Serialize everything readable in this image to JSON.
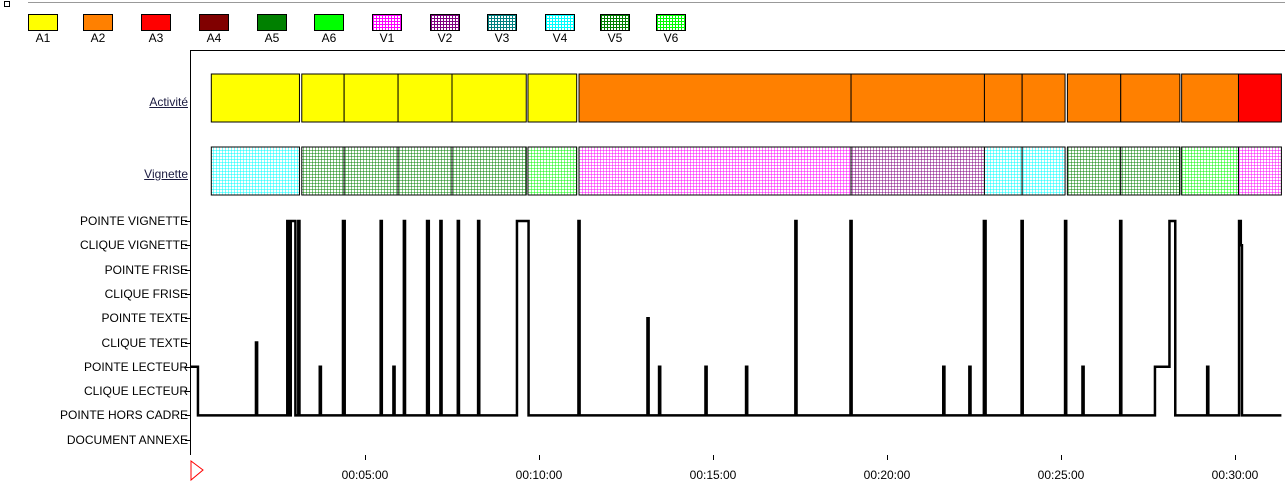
{
  "legend": [
    {
      "label": "A1",
      "color": "#ffff00",
      "pattern": "solid"
    },
    {
      "label": "A2",
      "color": "#ff8000",
      "pattern": "solid"
    },
    {
      "label": "A3",
      "color": "#ff0000",
      "pattern": "solid"
    },
    {
      "label": "A4",
      "color": "#800000",
      "pattern": "solid"
    },
    {
      "label": "A5",
      "color": "#008000",
      "pattern": "solid"
    },
    {
      "label": "A6",
      "color": "#00ff00",
      "pattern": "solid"
    },
    {
      "label": "V1",
      "color": "#ff00ff",
      "pattern": "grid"
    },
    {
      "label": "V2",
      "color": "#800080",
      "pattern": "grid"
    },
    {
      "label": "V3",
      "color": "#008080",
      "pattern": "grid"
    },
    {
      "label": "V4",
      "color": "#00ffff",
      "pattern": "grid"
    },
    {
      "label": "V5",
      "color": "#008000",
      "pattern": "grid"
    },
    {
      "label": "V6",
      "color": "#00ff00",
      "pattern": "grid"
    }
  ],
  "rows": {
    "activite": "Activité",
    "vignette": "Vignette"
  },
  "event_labels": [
    "POINTE VIGNETTE",
    "CLIQUE VIGNETTE",
    "POINTE FRISE",
    "CLIQUE FRISE",
    "POINTE TEXTE",
    "CLIQUE TEXTE",
    "POINTE LECTEUR",
    "CLIQUE LECTEUR",
    "POINTE HORS CADRE",
    "DOCUMENT ANNEXE"
  ],
  "time_labels": [
    "00:05:00",
    "00:10:00",
    "00:15:00",
    "00:20:00",
    "00:25:00",
    "00:30:00"
  ],
  "activity_segments": [
    {
      "code": "A1",
      "start": "00:00:35",
      "end": "00:03:07"
    },
    {
      "code": "A1",
      "start": "00:03:11",
      "end": "00:04:24"
    },
    {
      "code": "A1",
      "start": "00:04:24",
      "end": "00:05:57"
    },
    {
      "code": "A1",
      "start": "00:05:57",
      "end": "00:07:30"
    },
    {
      "code": "A1",
      "start": "00:07:30",
      "end": "00:09:38"
    },
    {
      "code": "A1",
      "start": "00:09:41",
      "end": "00:11:05"
    },
    {
      "code": "A2",
      "start": "00:11:09",
      "end": "00:18:58"
    },
    {
      "code": "A2",
      "start": "00:18:58",
      "end": "00:22:48"
    },
    {
      "code": "A2",
      "start": "00:22:48",
      "end": "00:23:53"
    },
    {
      "code": "A2",
      "start": "00:23:53",
      "end": "00:25:07"
    },
    {
      "code": "A2",
      "start": "00:25:11",
      "end": "00:26:43"
    },
    {
      "code": "A2",
      "start": "00:26:43",
      "end": "00:28:25"
    },
    {
      "code": "A2",
      "start": "00:28:28",
      "end": "00:30:06"
    },
    {
      "code": "A3",
      "start": "00:30:06",
      "end": "00:31:20"
    }
  ],
  "vignette_segments": [
    {
      "code": "V4",
      "start": "00:00:35",
      "end": "00:03:07"
    },
    {
      "code": "V5",
      "start": "00:03:11",
      "end": "00:04:24"
    },
    {
      "code": "V5",
      "start": "00:04:24",
      "end": "00:05:57"
    },
    {
      "code": "V5",
      "start": "00:05:57",
      "end": "00:07:30"
    },
    {
      "code": "V5",
      "start": "00:07:30",
      "end": "00:09:38"
    },
    {
      "code": "V6",
      "start": "00:09:41",
      "end": "00:11:05"
    },
    {
      "code": "V1",
      "start": "00:11:09",
      "end": "00:18:58"
    },
    {
      "code": "V2",
      "start": "00:18:58",
      "end": "00:22:48"
    },
    {
      "code": "V4",
      "start": "00:22:48",
      "end": "00:23:53"
    },
    {
      "code": "V4",
      "start": "00:23:53",
      "end": "00:25:07"
    },
    {
      "code": "V5",
      "start": "00:25:11",
      "end": "00:26:43"
    },
    {
      "code": "V5",
      "start": "00:26:43",
      "end": "00:28:25"
    },
    {
      "code": "V6",
      "start": "00:28:28",
      "end": "00:30:06"
    },
    {
      "code": "V1",
      "start": "00:30:06",
      "end": "00:31:20"
    }
  ],
  "event_trace": [
    [
      "00:00:00",
      7
    ],
    [
      "00:00:10",
      7
    ],
    [
      "00:00:12",
      9
    ],
    [
      "00:01:50",
      9
    ],
    [
      "00:01:52",
      6
    ],
    [
      "00:01:54",
      9
    ],
    [
      "00:02:45",
      9
    ],
    [
      "00:02:46",
      1
    ],
    [
      "00:02:48",
      9
    ],
    [
      "00:02:52",
      1
    ],
    [
      "00:02:58",
      1
    ],
    [
      "00:03:00",
      9
    ],
    [
      "00:03:05",
      1
    ],
    [
      "00:03:07",
      9
    ],
    [
      "00:03:40",
      9
    ],
    [
      "00:03:42",
      7
    ],
    [
      "00:03:44",
      9
    ],
    [
      "00:04:20",
      9
    ],
    [
      "00:04:22",
      1
    ],
    [
      "00:04:25",
      9
    ],
    [
      "00:05:25",
      9
    ],
    [
      "00:05:27",
      1
    ],
    [
      "00:05:29",
      9
    ],
    [
      "00:05:47",
      9
    ],
    [
      "00:05:49",
      7
    ],
    [
      "00:05:51",
      9
    ],
    [
      "00:06:05",
      9
    ],
    [
      "00:06:07",
      1
    ],
    [
      "00:06:09",
      9
    ],
    [
      "00:06:45",
      9
    ],
    [
      "00:06:47",
      1
    ],
    [
      "00:06:50",
      9
    ],
    [
      "00:07:10",
      1
    ],
    [
      "00:07:12",
      9
    ],
    [
      "00:07:40",
      1
    ],
    [
      "00:07:42",
      9
    ],
    [
      "00:08:15",
      1
    ],
    [
      "00:08:17",
      9
    ],
    [
      "00:09:20",
      9
    ],
    [
      "00:09:22",
      1
    ],
    [
      "00:09:40",
      1
    ],
    [
      "00:09:42",
      9
    ],
    [
      "00:11:05",
      9
    ],
    [
      "00:11:08",
      1
    ],
    [
      "00:11:10",
      9
    ],
    [
      "00:13:05",
      9
    ],
    [
      "00:13:07",
      5
    ],
    [
      "00:13:09",
      9
    ],
    [
      "00:13:25",
      9
    ],
    [
      "00:13:27",
      7
    ],
    [
      "00:13:29",
      9
    ],
    [
      "00:14:45",
      9
    ],
    [
      "00:14:47",
      7
    ],
    [
      "00:14:49",
      9
    ],
    [
      "00:15:55",
      9
    ],
    [
      "00:15:57",
      7
    ],
    [
      "00:15:59",
      9
    ],
    [
      "00:17:20",
      9
    ],
    [
      "00:17:22",
      1
    ],
    [
      "00:17:24",
      9
    ],
    [
      "00:18:55",
      9
    ],
    [
      "00:18:57",
      1
    ],
    [
      "00:18:59",
      9
    ],
    [
      "00:21:35",
      9
    ],
    [
      "00:21:37",
      7
    ],
    [
      "00:21:39",
      9
    ],
    [
      "00:22:20",
      9
    ],
    [
      "00:22:22",
      7
    ],
    [
      "00:22:24",
      9
    ],
    [
      "00:22:45",
      9
    ],
    [
      "00:22:47",
      1
    ],
    [
      "00:22:50",
      9
    ],
    [
      "00:23:50",
      9
    ],
    [
      "00:23:52",
      1
    ],
    [
      "00:23:54",
      9
    ],
    [
      "00:25:05",
      9
    ],
    [
      "00:25:07",
      1
    ],
    [
      "00:25:09",
      9
    ],
    [
      "00:25:35",
      9
    ],
    [
      "00:25:37",
      7
    ],
    [
      "00:25:39",
      9
    ],
    [
      "00:26:40",
      9
    ],
    [
      "00:26:42",
      1
    ],
    [
      "00:26:44",
      9
    ],
    [
      "00:27:40",
      9
    ],
    [
      "00:27:42",
      7
    ],
    [
      "00:28:05",
      7
    ],
    [
      "00:28:07",
      1
    ],
    [
      "00:28:15",
      1
    ],
    [
      "00:28:17",
      9
    ],
    [
      "00:29:10",
      9
    ],
    [
      "00:29:12",
      7
    ],
    [
      "00:29:14",
      9
    ],
    [
      "00:30:05",
      9
    ],
    [
      "00:30:07",
      1
    ],
    [
      "00:30:10",
      2
    ],
    [
      "00:30:12",
      9
    ],
    [
      "00:31:20",
      9
    ]
  ]
}
